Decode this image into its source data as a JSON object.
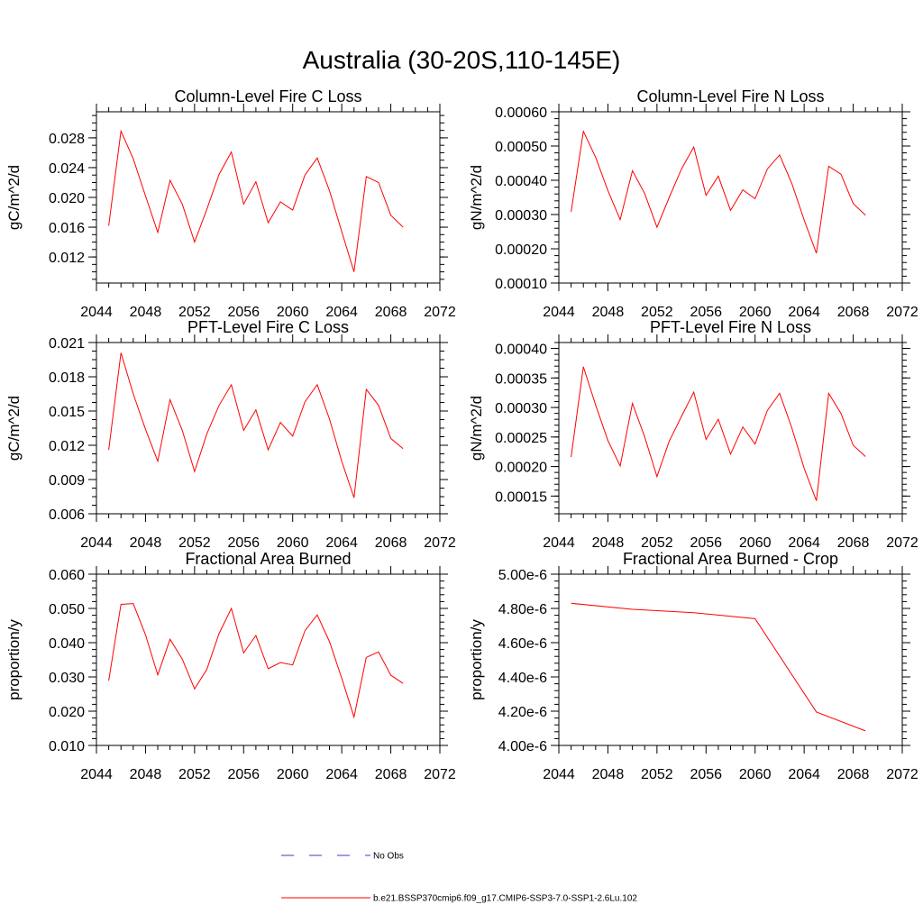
{
  "figure": {
    "title": "Australia (30-20S,110-145E)"
  },
  "legend": {
    "items": [
      {
        "label": "No Obs",
        "color": "#3b3bc4",
        "dash": true
      },
      {
        "label": "b.e21.BSSP370cmip6.f09_g17.CMIP6-SSP3-7.0-SSP1-2.6Lu.102",
        "color": "#ff0000",
        "dash": false
      }
    ]
  },
  "colors": {
    "series": "#ff0000",
    "axis": "#000000"
  },
  "chart_data": [
    {
      "type": "line",
      "title": "Column-Level Fire C Loss",
      "ylabel": "gC/m^2/d",
      "xlim": [
        2044,
        2072
      ],
      "ylim": [
        0.0085,
        0.0315
      ],
      "xticks": [
        "2044",
        "2048",
        "2052",
        "2056",
        "2060",
        "2064",
        "2068",
        "2072"
      ],
      "yticks": [
        "0.012",
        "0.016",
        "0.020",
        "0.024",
        "0.028"
      ],
      "ytick_values": [
        0.012,
        0.016,
        0.02,
        0.024,
        0.028
      ],
      "minor_step": 0.001,
      "x": [
        2045,
        2046,
        2047,
        2048,
        2049,
        2050,
        2051,
        2052,
        2053,
        2054,
        2055,
        2056,
        2057,
        2058,
        2059,
        2060,
        2061,
        2062,
        2063,
        2064,
        2065,
        2066,
        2067,
        2068,
        2069
      ],
      "series": [
        {
          "values": [
            0.0162,
            0.0289,
            0.0252,
            0.0202,
            0.0153,
            0.0223,
            0.0191,
            0.014,
            0.0184,
            0.0231,
            0.0261,
            0.0191,
            0.0221,
            0.0166,
            0.0194,
            0.0183,
            0.023,
            0.0253,
            0.0209,
            0.0154,
            0.01,
            0.0228,
            0.022,
            0.0176,
            0.016
          ]
        }
      ]
    },
    {
      "type": "line",
      "title": "Column-Level Fire N Loss",
      "ylabel": "gN/m^2/d",
      "xlim": [
        2044,
        2072
      ],
      "ylim": [
        0.0001,
        0.0006
      ],
      "xticks": [
        "2044",
        "2048",
        "2052",
        "2056",
        "2060",
        "2064",
        "2068",
        "2072"
      ],
      "yticks": [
        "0.00010",
        "0.00020",
        "0.00030",
        "0.00040",
        "0.00050",
        "0.00060"
      ],
      "ytick_values": [
        0.0001,
        0.0002,
        0.0003,
        0.0004,
        0.0005,
        0.0006
      ],
      "minor_step": 2e-05,
      "x": [
        2045,
        2046,
        2047,
        2048,
        2049,
        2050,
        2051,
        2052,
        2053,
        2054,
        2055,
        2056,
        2057,
        2058,
        2059,
        2060,
        2061,
        2062,
        2063,
        2064,
        2065,
        2066,
        2067,
        2068,
        2069
      ],
      "series": [
        {
          "values": [
            0.000308,
            0.000543,
            0.000467,
            0.00037,
            0.000285,
            0.000428,
            0.000361,
            0.000263,
            0.00035,
            0.000433,
            0.000497,
            0.000356,
            0.000412,
            0.000312,
            0.000372,
            0.000346,
            0.000433,
            0.000474,
            0.00039,
            0.000284,
            0.000187,
            0.000441,
            0.000418,
            0.000332,
            0.000298
          ]
        }
      ]
    },
    {
      "type": "line",
      "title": "PFT-Level Fire C Loss",
      "ylabel": "gC/m^2/d",
      "xlim": [
        2044,
        2072
      ],
      "ylim": [
        0.006,
        0.021
      ],
      "xticks": [
        "2044",
        "2048",
        "2052",
        "2056",
        "2060",
        "2064",
        "2068",
        "2072"
      ],
      "yticks": [
        "0.006",
        "0.009",
        "0.012",
        "0.015",
        "0.018",
        "0.021"
      ],
      "ytick_values": [
        0.006,
        0.009,
        0.012,
        0.015,
        0.018,
        0.021
      ],
      "minor_step": 0.00075,
      "x": [
        2045,
        2046,
        2047,
        2048,
        2049,
        2050,
        2051,
        2052,
        2053,
        2054,
        2055,
        2056,
        2057,
        2058,
        2059,
        2060,
        2061,
        2062,
        2063,
        2064,
        2065,
        2066,
        2067,
        2068,
        2069
      ],
      "series": [
        {
          "values": [
            0.0116,
            0.0201,
            0.0165,
            0.0134,
            0.0106,
            0.016,
            0.0133,
            0.0097,
            0.013,
            0.0155,
            0.0173,
            0.0133,
            0.0151,
            0.0116,
            0.014,
            0.0128,
            0.0158,
            0.0173,
            0.0143,
            0.0106,
            0.0074,
            0.0169,
            0.0155,
            0.0126,
            0.0117
          ]
        }
      ]
    },
    {
      "type": "line",
      "title": "PFT-Level Fire N Loss",
      "ylabel": "gN/m^2/d",
      "xlim": [
        2044,
        2072
      ],
      "ylim": [
        0.00012,
        0.00041
      ],
      "xticks": [
        "2044",
        "2048",
        "2052",
        "2056",
        "2060",
        "2064",
        "2068",
        "2072"
      ],
      "yticks": [
        "0.00015",
        "0.00020",
        "0.00025",
        "0.00030",
        "0.00035",
        "0.00040"
      ],
      "ytick_values": [
        0.00015,
        0.0002,
        0.00025,
        0.0003,
        0.00035,
        0.0004
      ],
      "minor_step": 1e-05,
      "x": [
        2045,
        2046,
        2047,
        2048,
        2049,
        2050,
        2051,
        2052,
        2053,
        2054,
        2055,
        2056,
        2057,
        2058,
        2059,
        2060,
        2061,
        2062,
        2063,
        2064,
        2065,
        2066,
        2067,
        2068,
        2069
      ],
      "series": [
        {
          "values": [
            0.000216,
            0.000369,
            0.000304,
            0.000244,
            0.000201,
            0.000307,
            0.00025,
            0.000183,
            0.000243,
            0.000285,
            0.000326,
            0.000246,
            0.00028,
            0.000221,
            0.000267,
            0.000238,
            0.000295,
            0.000324,
            0.000265,
            0.000197,
            0.000142,
            0.000324,
            0.00029,
            0.000236,
            0.000217
          ]
        }
      ]
    },
    {
      "type": "line",
      "title": "Fractional Area Burned",
      "ylabel": "proportion/y",
      "xlim": [
        2044,
        2072
      ],
      "ylim": [
        0.01,
        0.06
      ],
      "xticks": [
        "2044",
        "2048",
        "2052",
        "2056",
        "2060",
        "2064",
        "2068",
        "2072"
      ],
      "yticks": [
        "0.010",
        "0.020",
        "0.030",
        "0.040",
        "0.050",
        "0.060"
      ],
      "ytick_values": [
        0.01,
        0.02,
        0.03,
        0.04,
        0.05,
        0.06
      ],
      "minor_step": 0.002,
      "x": [
        2045,
        2046,
        2047,
        2048,
        2049,
        2050,
        2051,
        2052,
        2053,
        2054,
        2055,
        2056,
        2057,
        2058,
        2059,
        2060,
        2061,
        2062,
        2063,
        2064,
        2065,
        2066,
        2067,
        2068,
        2069
      ],
      "series": [
        {
          "values": [
            0.0289,
            0.0512,
            0.0514,
            0.0423,
            0.0306,
            0.041,
            0.0352,
            0.0265,
            0.0322,
            0.0427,
            0.05,
            0.037,
            0.0421,
            0.0324,
            0.0342,
            0.0335,
            0.0435,
            0.0481,
            0.0403,
            0.0296,
            0.0183,
            0.0357,
            0.0373,
            0.0305,
            0.0281
          ]
        }
      ]
    },
    {
      "type": "line",
      "title": "Fractional Area Burned - Crop",
      "ylabel": "proportion/y",
      "xlim": [
        2044,
        2072
      ],
      "ylim": [
        4e-06,
        5e-06
      ],
      "xticks": [
        "2044",
        "2048",
        "2052",
        "2056",
        "2060",
        "2064",
        "2068",
        "2072"
      ],
      "yticks": [
        "4.00e-6",
        "4.20e-6",
        "4.40e-6",
        "4.60e-6",
        "4.80e-6",
        "5.00e-6"
      ],
      "ytick_values": [
        4e-06,
        4.2e-06,
        4.4e-06,
        4.6e-06,
        4.8e-06,
        5e-06
      ],
      "minor_step": 4e-08,
      "x": [
        2045,
        2050,
        2055,
        2060,
        2065,
        2069
      ],
      "series": [
        {
          "values": [
            4.83e-06,
            4.795e-06,
            4.775e-06,
            4.74e-06,
            4.195e-06,
            4.085e-06
          ]
        }
      ]
    }
  ]
}
